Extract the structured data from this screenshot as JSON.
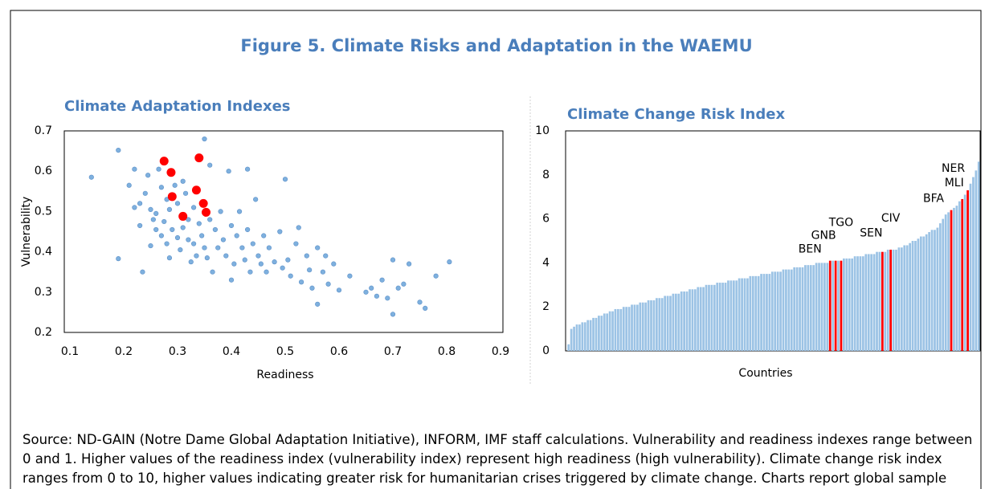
{
  "title": "Figure 5. Climate Risks and Adaptation in the WAEMU",
  "source": "Source: ND-GAIN (Notre Dame Global Adaptation Initiative), INFORM, IMF staff calculations. Vulnerability and readiness indexes range between 0 and 1. Higher values of the readiness index (vulnerability index) represent high readiness (high vulnerability). Climate change risk index ranges from 0 to 10, higher values indicating greater risk for humanitarian crises triggered by climate change. Charts report global sample versus WAEMU countries.",
  "chart_data": [
    {
      "type": "scatter",
      "title": "Climate Adaptation Indexes",
      "xlabel": "Readiness",
      "ylabel": "Vulnerability",
      "xlim": [
        0.1,
        0.9
      ],
      "xticks": [
        0.1,
        0.2,
        0.3,
        0.4,
        0.5,
        0.6,
        0.7,
        0.8,
        0.9
      ],
      "ylim": [
        0.2,
        0.7
      ],
      "yticks": [
        0.2,
        0.3,
        0.4,
        0.5,
        0.6,
        0.7
      ],
      "series": [
        {
          "color": "#7eb0de",
          "x": [
            0.14,
            0.19,
            0.19,
            0.21,
            0.22,
            0.22,
            0.23,
            0.23,
            0.235,
            0.24,
            0.245,
            0.25,
            0.25,
            0.255,
            0.26,
            0.26,
            0.265,
            0.27,
            0.27,
            0.275,
            0.28,
            0.28,
            0.285,
            0.285,
            0.29,
            0.295,
            0.3,
            0.3,
            0.305,
            0.31,
            0.31,
            0.315,
            0.32,
            0.32,
            0.325,
            0.33,
            0.33,
            0.335,
            0.34,
            0.345,
            0.35,
            0.35,
            0.355,
            0.36,
            0.36,
            0.365,
            0.37,
            0.375,
            0.38,
            0.385,
            0.39,
            0.395,
            0.4,
            0.4,
            0.405,
            0.41,
            0.415,
            0.42,
            0.425,
            0.43,
            0.43,
            0.435,
            0.44,
            0.445,
            0.45,
            0.455,
            0.46,
            0.465,
            0.47,
            0.48,
            0.49,
            0.495,
            0.5,
            0.505,
            0.51,
            0.52,
            0.525,
            0.53,
            0.54,
            0.545,
            0.55,
            0.56,
            0.56,
            0.57,
            0.575,
            0.58,
            0.59,
            0.6,
            0.62,
            0.65,
            0.66,
            0.67,
            0.68,
            0.69,
            0.7,
            0.7,
            0.71,
            0.72,
            0.73,
            0.75,
            0.76,
            0.78,
            0.805
          ],
          "values": [
            0.585,
            0.652,
            0.383,
            0.565,
            0.605,
            0.51,
            0.52,
            0.465,
            0.35,
            0.545,
            0.59,
            0.415,
            0.505,
            0.48,
            0.455,
            0.495,
            0.605,
            0.56,
            0.44,
            0.475,
            0.42,
            0.53,
            0.505,
            0.385,
            0.455,
            0.565,
            0.435,
            0.52,
            0.405,
            0.575,
            0.46,
            0.545,
            0.48,
            0.43,
            0.375,
            0.51,
            0.42,
            0.39,
            0.47,
            0.44,
            0.68,
            0.41,
            0.385,
            0.615,
            0.48,
            0.35,
            0.455,
            0.41,
            0.5,
            0.43,
            0.39,
            0.6,
            0.465,
            0.33,
            0.37,
            0.44,
            0.5,
            0.41,
            0.38,
            0.605,
            0.455,
            0.35,
            0.42,
            0.53,
            0.39,
            0.37,
            0.44,
            0.35,
            0.41,
            0.375,
            0.45,
            0.36,
            0.58,
            0.38,
            0.34,
            0.42,
            0.46,
            0.325,
            0.39,
            0.355,
            0.31,
            0.41,
            0.27,
            0.35,
            0.39,
            0.32,
            0.37,
            0.305,
            0.34,
            0.3,
            0.31,
            0.29,
            0.33,
            0.285,
            0.38,
            0.245,
            0.31,
            0.32,
            0.37,
            0.275,
            0.26,
            0.34,
            0.375
          ]
        },
        {
          "color": "#ff0000",
          "x": [
            0.275,
            0.288,
            0.34,
            0.335,
            0.29,
            0.348,
            0.353,
            0.31
          ],
          "values": [
            0.625,
            0.597,
            0.633,
            0.553,
            0.537,
            0.52,
            0.498,
            0.488
          ]
        }
      ]
    },
    {
      "type": "bar",
      "title": "Climate Change Risk Index",
      "xlabel": "Countries",
      "ylim": [
        0,
        10
      ],
      "yticks": [
        0,
        2,
        4,
        6,
        8,
        10
      ],
      "color": "#9cc3e5",
      "highlight_color": "#ff0000",
      "categories": [
        null,
        null,
        null,
        null,
        null,
        null,
        null,
        null,
        null,
        null,
        null,
        null,
        null,
        null,
        null,
        null,
        null,
        null,
        null,
        null,
        null,
        null,
        null,
        null,
        null,
        null,
        null,
        null,
        null,
        null,
        null,
        null,
        null,
        null,
        null,
        null,
        null,
        null,
        null,
        null,
        null,
        null,
        null,
        null,
        null,
        null,
        null,
        null,
        null,
        null,
        null,
        null,
        null,
        null,
        null,
        null,
        null,
        null,
        null,
        null,
        null,
        null,
        null,
        null,
        null,
        null,
        null,
        null,
        null,
        null,
        null,
        null,
        null,
        null,
        null,
        null,
        null,
        null,
        null,
        null,
        null,
        null,
        null,
        null,
        null,
        null,
        null,
        null,
        null,
        null,
        null,
        null,
        null,
        null,
        null,
        "BEN",
        null,
        "GNB",
        null,
        "TGO",
        null,
        null,
        null,
        null,
        null,
        null,
        null,
        null,
        null,
        null,
        null,
        null,
        null,
        null,
        "SEN",
        null,
        null,
        "CIV",
        null,
        null,
        null,
        null,
        null,
        null,
        null,
        null,
        null,
        null,
        null,
        null,
        null,
        null,
        null,
        null,
        null,
        null,
        null,
        null,
        null,
        "BFA",
        null,
        null,
        null,
        "MLI",
        null,
        "NER",
        null,
        null,
        null,
        null
      ],
      "values": [
        0.3,
        1.0,
        1.1,
        1.2,
        1.2,
        1.3,
        1.3,
        1.4,
        1.4,
        1.5,
        1.5,
        1.6,
        1.6,
        1.7,
        1.7,
        1.8,
        1.8,
        1.9,
        1.9,
        1.9,
        2.0,
        2.0,
        2.0,
        2.1,
        2.1,
        2.1,
        2.2,
        2.2,
        2.2,
        2.3,
        2.3,
        2.3,
        2.4,
        2.4,
        2.4,
        2.5,
        2.5,
        2.5,
        2.6,
        2.6,
        2.6,
        2.7,
        2.7,
        2.7,
        2.8,
        2.8,
        2.8,
        2.9,
        2.9,
        2.9,
        3.0,
        3.0,
        3.0,
        3.0,
        3.1,
        3.1,
        3.1,
        3.1,
        3.2,
        3.2,
        3.2,
        3.2,
        3.3,
        3.3,
        3.3,
        3.3,
        3.4,
        3.4,
        3.4,
        3.4,
        3.5,
        3.5,
        3.5,
        3.5,
        3.6,
        3.6,
        3.6,
        3.6,
        3.7,
        3.7,
        3.7,
        3.7,
        3.8,
        3.8,
        3.8,
        3.8,
        3.9,
        3.9,
        3.9,
        3.9,
        4.0,
        4.0,
        4.0,
        4.0,
        4.0,
        4.1,
        4.1,
        4.1,
        4.1,
        4.1,
        4.2,
        4.2,
        4.2,
        4.2,
        4.3,
        4.3,
        4.3,
        4.3,
        4.4,
        4.4,
        4.4,
        4.4,
        4.5,
        4.5,
        4.5,
        4.5,
        4.6,
        4.6,
        4.6,
        4.6,
        4.7,
        4.7,
        4.8,
        4.8,
        4.9,
        5.0,
        5.0,
        5.1,
        5.2,
        5.2,
        5.3,
        5.4,
        5.5,
        5.5,
        5.6,
        5.8,
        6.0,
        6.2,
        6.3,
        6.4,
        6.5,
        6.6,
        6.8,
        6.9,
        7.1,
        7.3,
        7.6,
        7.9,
        8.2,
        8.6
      ]
    }
  ]
}
